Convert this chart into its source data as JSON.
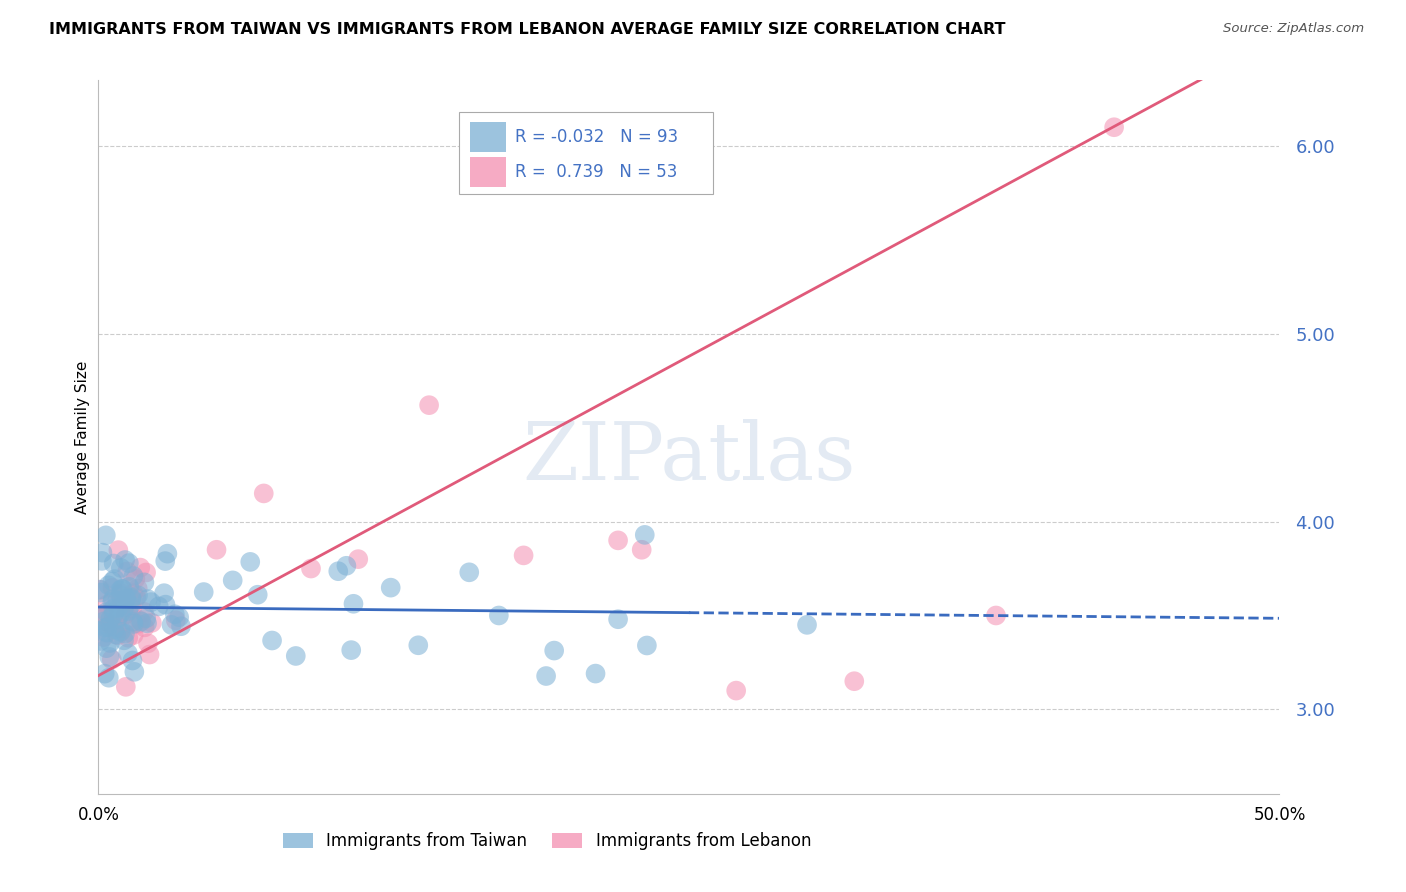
{
  "title": "IMMIGRANTS FROM TAIWAN VS IMMIGRANTS FROM LEBANON AVERAGE FAMILY SIZE CORRELATION CHART",
  "source": "Source: ZipAtlas.com",
  "ylabel": "Average Family Size",
  "yticks": [
    3.0,
    4.0,
    5.0,
    6.0
  ],
  "ytick_color": "#4472c4",
  "taiwan_color": "#7bafd4",
  "lebanon_color": "#f48fb1",
  "taiwan_line_color": "#3a6bbf",
  "lebanon_line_color": "#e05a7a",
  "taiwan_R": -0.032,
  "taiwan_N": 93,
  "lebanon_R": 0.739,
  "lebanon_N": 53,
  "legend_taiwan": "Immigrants from Taiwan",
  "legend_lebanon": "Immigrants from Lebanon",
  "background_color": "#ffffff",
  "grid_color": "#cccccc",
  "xlim": [
    0.0,
    0.5
  ],
  "ylim": [
    2.55,
    6.35
  ],
  "taiwan_line_solid_end": 0.25,
  "taiwan_line_intercept": 3.545,
  "taiwan_line_slope": -0.12,
  "lebanon_line_intercept": 3.18,
  "lebanon_line_slope": 6.8
}
